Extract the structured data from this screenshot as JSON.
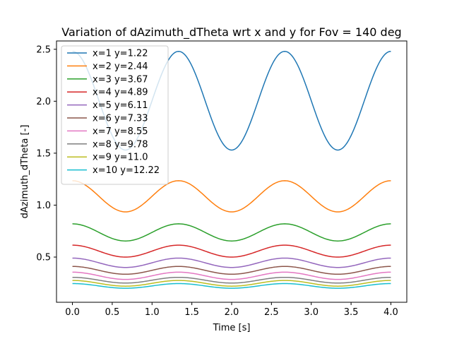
{
  "chart_data": {
    "type": "line",
    "title": "Variation of dAzimuth_dTheta wrt x and y for Fov = 140 deg",
    "xlabel": "Time [s]",
    "ylabel": "dAzimuth_dTheta [-]",
    "xlim": [
      -0.2,
      4.2
    ],
    "ylim": [
      0.065,
      2.58
    ],
    "xticks": [
      "0.0",
      "0.5",
      "1.0",
      "1.5",
      "2.0",
      "2.5",
      "3.0",
      "3.5",
      "4.0"
    ],
    "yticks": [
      "0.5",
      "1.0",
      "1.5",
      "2.0",
      "2.5"
    ],
    "grid": false,
    "legend_position": "upper-left",
    "x_range": [
      0,
      4
    ],
    "period_s": 1.3333,
    "series": [
      {
        "name": "x=1 y=1.22",
        "color": "#1f77b4",
        "max": 2.48,
        "min": 1.53
      },
      {
        "name": "x=2 y=2.44",
        "color": "#ff7f0e",
        "max": 1.235,
        "min": 0.935
      },
      {
        "name": "x=3 y=3.67",
        "color": "#2ca02c",
        "max": 0.82,
        "min": 0.655
      },
      {
        "name": "x=4 y=4.89",
        "color": "#d62728",
        "max": 0.615,
        "min": 0.5
      },
      {
        "name": "x=5 y=6.11",
        "color": "#9467bd",
        "max": 0.49,
        "min": 0.4
      },
      {
        "name": "x=6 y=7.33",
        "color": "#8c564b",
        "max": 0.41,
        "min": 0.335
      },
      {
        "name": "x=7 y=8.55",
        "color": "#e377c2",
        "max": 0.355,
        "min": 0.285
      },
      {
        "name": "x=8 y=9.78",
        "color": "#7f7f7f",
        "max": 0.305,
        "min": 0.25
      },
      {
        "name": "x=9 y=11.0",
        "color": "#bcbd22",
        "max": 0.275,
        "min": 0.22
      },
      {
        "name": "x=10 y=12.22",
        "color": "#17becf",
        "max": 0.245,
        "min": 0.2
      }
    ]
  }
}
